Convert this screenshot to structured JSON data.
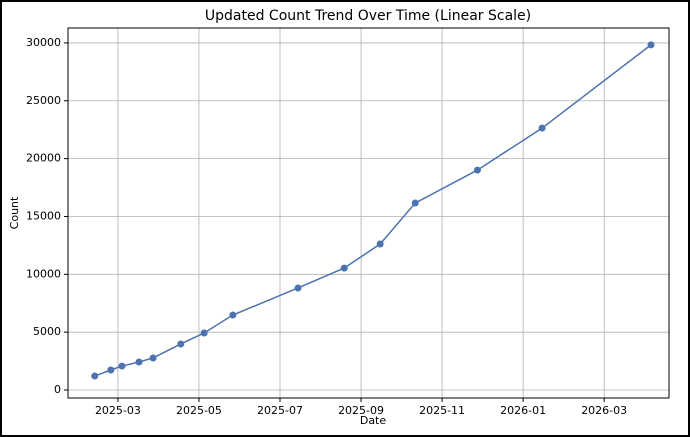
{
  "chart_data": {
    "type": "line",
    "title": "Updated Count Trend Over Time (Linear Scale)",
    "xlabel": "Date",
    "ylabel": "Count",
    "x": [
      2025.119,
      2025.152,
      2025.175,
      2025.21,
      2025.239,
      2025.296,
      2025.344,
      2025.403,
      2025.537,
      2025.632,
      2025.706,
      2025.778,
      2025.906,
      2026.039,
      2026.263
    ],
    "series": [
      {
        "color": "#4c72b0",
        "values": [
          1210,
          1730,
          2070,
          2420,
          2770,
          3980,
          4930,
          6480,
          8820,
          10540,
          12620,
          16160,
          19010,
          22640,
          29830
        ]
      }
    ],
    "xlim": [
      2025.064,
      2026.3
    ],
    "xticks": [
      {
        "value": 2025.1667,
        "label": "2025-03"
      },
      {
        "value": 2025.3333,
        "label": "2025-05"
      },
      {
        "value": 2025.5,
        "label": "2025-07"
      },
      {
        "value": 2025.6667,
        "label": "2025-09"
      },
      {
        "value": 2025.8333,
        "label": "2025-11"
      },
      {
        "value": 2026.0,
        "label": "2026-01"
      },
      {
        "value": 2026.1667,
        "label": "2026-03"
      }
    ],
    "ylim": [
      -690,
      31290
    ],
    "yticks": [
      0,
      5000,
      10000,
      15000,
      20000,
      25000,
      30000
    ],
    "grid": true
  }
}
